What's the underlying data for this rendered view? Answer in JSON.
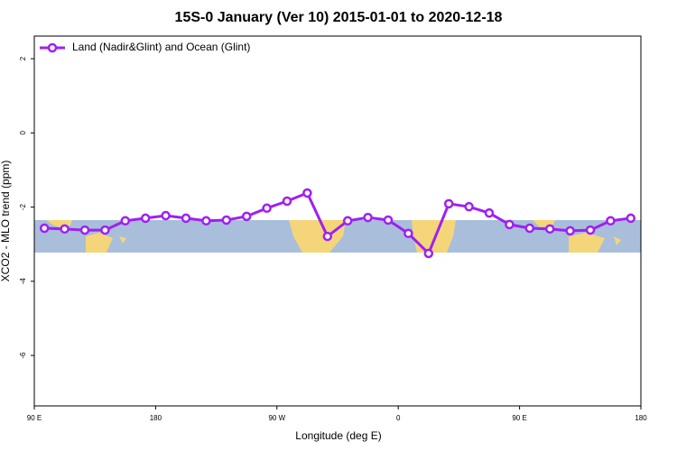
{
  "chart_data": {
    "type": "line",
    "title": "15S-0 January (Ver 10)   2015-01-01 to 2020-12-18",
    "x_label": "Longitude (deg E)",
    "y_label": "XCO2 - MLO trend (ppm)",
    "x": [
      97.5,
      112.5,
      127.5,
      142.5,
      157.5,
      172.5,
      187.5,
      202.5,
      217.5,
      232.5,
      247.5,
      262.5,
      277.5,
      292.5,
      307.5,
      322.5,
      337.5,
      352.5,
      367.5,
      382.5,
      397.5,
      412.5,
      427.5,
      442.5,
      457.5,
      472.5,
      487.5,
      502.5,
      517.5,
      532.5
    ],
    "series": [
      {
        "name": "Land (Nadir&Glint) and Ocean (Glint)",
        "color": "#a020f0",
        "values": [
          -2.57,
          -2.59,
          -2.62,
          -2.62,
          -2.37,
          -2.3,
          -2.23,
          -2.3,
          -2.37,
          -2.35,
          -2.25,
          -2.03,
          -1.84,
          -1.62,
          -2.79,
          -2.37,
          -2.28,
          -2.35,
          -2.71,
          -3.25,
          -1.91,
          -1.99,
          -2.16,
          -2.47,
          -2.57,
          -2.59,
          -2.64,
          -2.62,
          -2.37,
          -2.3
        ]
      }
    ],
    "xlim": [
      90,
      540
    ],
    "xticks": [
      {
        "value": 90,
        "label": "90 E"
      },
      180,
      {
        "value": 270,
        "label": "90 W"
      },
      {
        "value": 360,
        "label": "0"
      },
      {
        "value": 450,
        "label": "90 E"
      },
      {
        "value": 540,
        "label": "180"
      }
    ],
    "ylim": [
      -7.36,
      2.61
    ],
    "yticks": [
      -6,
      -4,
      -2,
      0,
      2
    ],
    "legend": "top-left"
  }
}
